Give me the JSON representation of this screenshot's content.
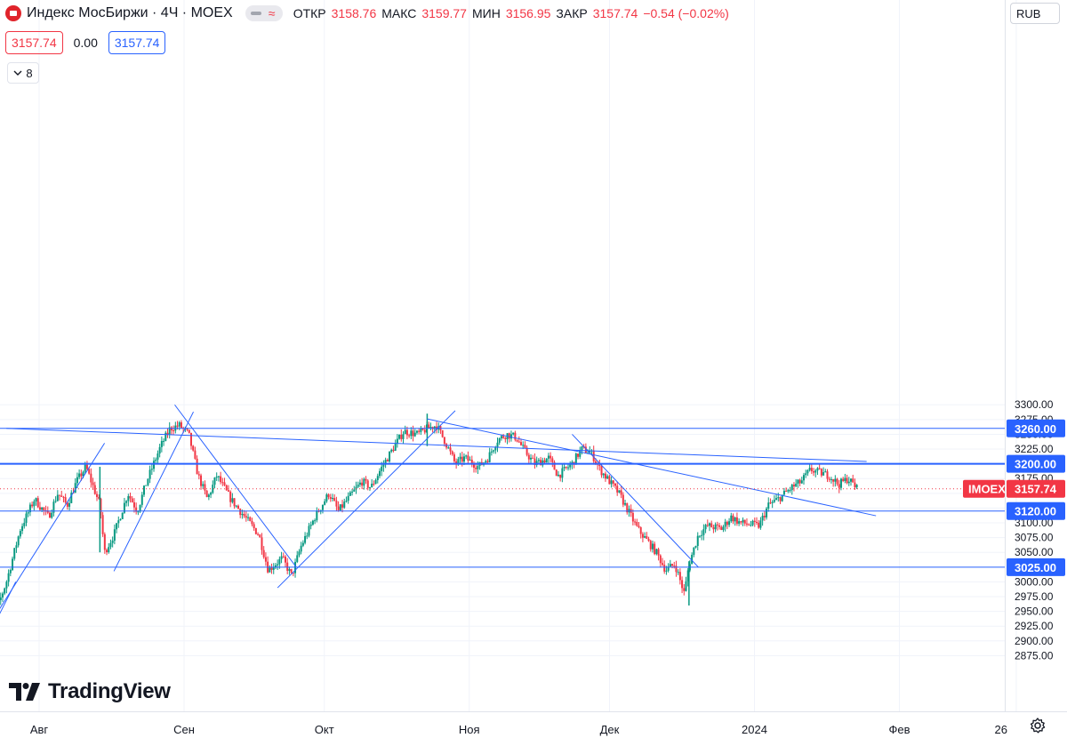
{
  "header": {
    "title": "Индекс МосБиржи · 4Ч · MOEX",
    "open_label": "ОТКР",
    "open": "3158.76",
    "high_label": "МАКС",
    "high": "3159.77",
    "low_label": "МИН",
    "low": "3156.95",
    "close_label": "ЗАКР",
    "close": "3157.74",
    "change": "−0.54 (−0.02%)"
  },
  "quote": {
    "bid": "3157.74",
    "spread": "0.00",
    "ask": "3157.74"
  },
  "indicators_count": "8",
  "currency": "RUB",
  "brand": "TradingView",
  "colors": {
    "up": "#089981",
    "down": "#f23645",
    "line": "#2962ff",
    "grid": "#f0f3fa"
  },
  "chart_data": {
    "type": "candlestick",
    "symbol": "IMOEX",
    "last_price": 3157.74,
    "last_price_text": "3157.74",
    "ylim": [
      2860,
      3310
    ],
    "y_ticks": [
      2875,
      2900,
      2925,
      2950,
      2975,
      3000,
      3025,
      3050,
      3075,
      3100,
      3125,
      3150,
      3175,
      3200,
      3225,
      3250,
      3275,
      3300
    ],
    "y_tick_labels": [
      "2875.00",
      "2900.00",
      "2925.00",
      "2950.00",
      "2975.00",
      "3000.00",
      "3025.00",
      "3050.00",
      "3075.00",
      "3100.00",
      "3125.00",
      "3150.00",
      "3175.00",
      "3200.00",
      "3225.00",
      "3250.00",
      "3275.00",
      "3300.00"
    ],
    "x_tick_labels": [
      "Авг",
      "Сен",
      "Окт",
      "Ноя",
      "Дек",
      "2024",
      "Фев",
      "26"
    ],
    "levels": [
      {
        "value": 3260.0,
        "label": "3260.00"
      },
      {
        "value": 3200.0,
        "label": "3200.00"
      },
      {
        "value": 3120.0,
        "label": "3120.00"
      },
      {
        "value": 3025.0,
        "label": "3025.00"
      }
    ],
    "path": [
      {
        "d": "2023-07-20",
        "p": 2905
      },
      {
        "d": "2023-07-23",
        "p": 2955
      },
      {
        "d": "2023-07-25",
        "p": 3000
      },
      {
        "d": "2023-07-28",
        "p": 3090
      },
      {
        "d": "2023-07-31",
        "p": 3140
      },
      {
        "d": "2023-08-03",
        "p": 3110
      },
      {
        "d": "2023-08-05",
        "p": 3150
      },
      {
        "d": "2023-08-07",
        "p": 3130
      },
      {
        "d": "2023-08-09",
        "p": 3170
      },
      {
        "d": "2023-08-11",
        "p": 3195
      },
      {
        "d": "2023-08-14",
        "p": 3130
      },
      {
        "d": "2023-08-15",
        "p": 3050
      },
      {
        "d": "2023-08-17",
        "p": 3080
      },
      {
        "d": "2023-08-20",
        "p": 3150
      },
      {
        "d": "2023-08-22",
        "p": 3120
      },
      {
        "d": "2023-08-24",
        "p": 3170
      },
      {
        "d": "2023-08-27",
        "p": 3230
      },
      {
        "d": "2023-08-29",
        "p": 3260
      },
      {
        "d": "2023-08-31",
        "p": 3265
      },
      {
        "d": "2023-09-02",
        "p": 3250
      },
      {
        "d": "2023-09-04",
        "p": 3180
      },
      {
        "d": "2023-09-06",
        "p": 3140
      },
      {
        "d": "2023-09-08",
        "p": 3180
      },
      {
        "d": "2023-09-11",
        "p": 3140
      },
      {
        "d": "2023-09-14",
        "p": 3110
      },
      {
        "d": "2023-09-17",
        "p": 3080
      },
      {
        "d": "2023-09-19",
        "p": 3020
      },
      {
        "d": "2023-09-22",
        "p": 3040
      },
      {
        "d": "2023-09-24",
        "p": 3010
      },
      {
        "d": "2023-09-26",
        "p": 3060
      },
      {
        "d": "2023-09-29",
        "p": 3110
      },
      {
        "d": "2023-10-02",
        "p": 3150
      },
      {
        "d": "2023-10-04",
        "p": 3120
      },
      {
        "d": "2023-10-06",
        "p": 3140
      },
      {
        "d": "2023-10-09",
        "p": 3170
      },
      {
        "d": "2023-10-11",
        "p": 3160
      },
      {
        "d": "2023-10-13",
        "p": 3190
      },
      {
        "d": "2023-10-16",
        "p": 3230
      },
      {
        "d": "2023-10-18",
        "p": 3255
      },
      {
        "d": "2023-10-21",
        "p": 3250
      },
      {
        "d": "2023-10-23",
        "p": 3260
      },
      {
        "d": "2023-10-25",
        "p": 3265
      },
      {
        "d": "2023-10-27",
        "p": 3235
      },
      {
        "d": "2023-10-29",
        "p": 3200
      },
      {
        "d": "2023-10-31",
        "p": 3210
      },
      {
        "d": "2023-11-03",
        "p": 3195
      },
      {
        "d": "2023-11-05",
        "p": 3210
      },
      {
        "d": "2023-11-07",
        "p": 3240
      },
      {
        "d": "2023-11-09",
        "p": 3250
      },
      {
        "d": "2023-11-11",
        "p": 3245
      },
      {
        "d": "2023-11-13",
        "p": 3220
      },
      {
        "d": "2023-11-15",
        "p": 3200
      },
      {
        "d": "2023-11-18",
        "p": 3210
      },
      {
        "d": "2023-11-20",
        "p": 3180
      },
      {
        "d": "2023-11-23",
        "p": 3200
      },
      {
        "d": "2023-11-25",
        "p": 3225
      },
      {
        "d": "2023-11-27",
        "p": 3220
      },
      {
        "d": "2023-11-29",
        "p": 3190
      },
      {
        "d": "2023-12-01",
        "p": 3170
      },
      {
        "d": "2023-12-03",
        "p": 3150
      },
      {
        "d": "2023-12-05",
        "p": 3120
      },
      {
        "d": "2023-12-07",
        "p": 3090
      },
      {
        "d": "2023-12-09",
        "p": 3070
      },
      {
        "d": "2023-12-11",
        "p": 3050
      },
      {
        "d": "2023-12-13",
        "p": 3020
      },
      {
        "d": "2023-12-15",
        "p": 3030
      },
      {
        "d": "2023-12-17",
        "p": 2980
      },
      {
        "d": "2023-12-18",
        "p": 3030
      },
      {
        "d": "2023-12-20",
        "p": 3080
      },
      {
        "d": "2023-12-22",
        "p": 3095
      },
      {
        "d": "2023-12-25",
        "p": 3090
      },
      {
        "d": "2023-12-27",
        "p": 3110
      },
      {
        "d": "2023-12-29",
        "p": 3100
      },
      {
        "d": "2024-01-02",
        "p": 3095
      },
      {
        "d": "2024-01-04",
        "p": 3130
      },
      {
        "d": "2024-01-06",
        "p": 3140
      },
      {
        "d": "2024-01-09",
        "p": 3160
      },
      {
        "d": "2024-01-11",
        "p": 3170
      },
      {
        "d": "2024-01-13",
        "p": 3190
      },
      {
        "d": "2024-01-15",
        "p": 3185
      },
      {
        "d": "2024-01-17",
        "p": 3180
      },
      {
        "d": "2024-01-19",
        "p": 3165
      },
      {
        "d": "2024-01-21",
        "p": 3175
      },
      {
        "d": "2024-01-23",
        "p": 3158
      }
    ],
    "trendlines": [
      {
        "from": {
          "d": "2023-07-25",
          "p": 3260
        },
        "to": {
          "d": "2024-01-25",
          "p": 3204
        }
      },
      {
        "from": {
          "d": "2023-10-23",
          "p": 3276
        },
        "to": {
          "d": "2024-01-27",
          "p": 3112
        }
      },
      {
        "from": {
          "d": "2023-07-20",
          "p": 2910
        },
        "to": {
          "d": "2023-08-15",
          "p": 3235
        }
      },
      {
        "from": {
          "d": "2023-07-20",
          "p": 2918
        },
        "to": {
          "d": "2023-07-23",
          "p": 2951
        }
      },
      {
        "from": {
          "d": "2023-07-20",
          "p": 2890
        },
        "to": {
          "d": "2023-07-27",
          "p": 3000
        }
      },
      {
        "from": {
          "d": "2023-08-17",
          "p": 3018
        },
        "to": {
          "d": "2023-09-03",
          "p": 3288
        }
      },
      {
        "from": {
          "d": "2023-08-30",
          "p": 3300
        },
        "to": {
          "d": "2023-09-25",
          "p": 3025
        }
      },
      {
        "from": {
          "d": "2023-09-21",
          "p": 2990
        },
        "to": {
          "d": "2023-10-29",
          "p": 3290
        }
      },
      {
        "from": {
          "d": "2023-11-23",
          "p": 3250
        },
        "to": {
          "d": "2023-12-20",
          "p": 3025
        }
      }
    ]
  }
}
